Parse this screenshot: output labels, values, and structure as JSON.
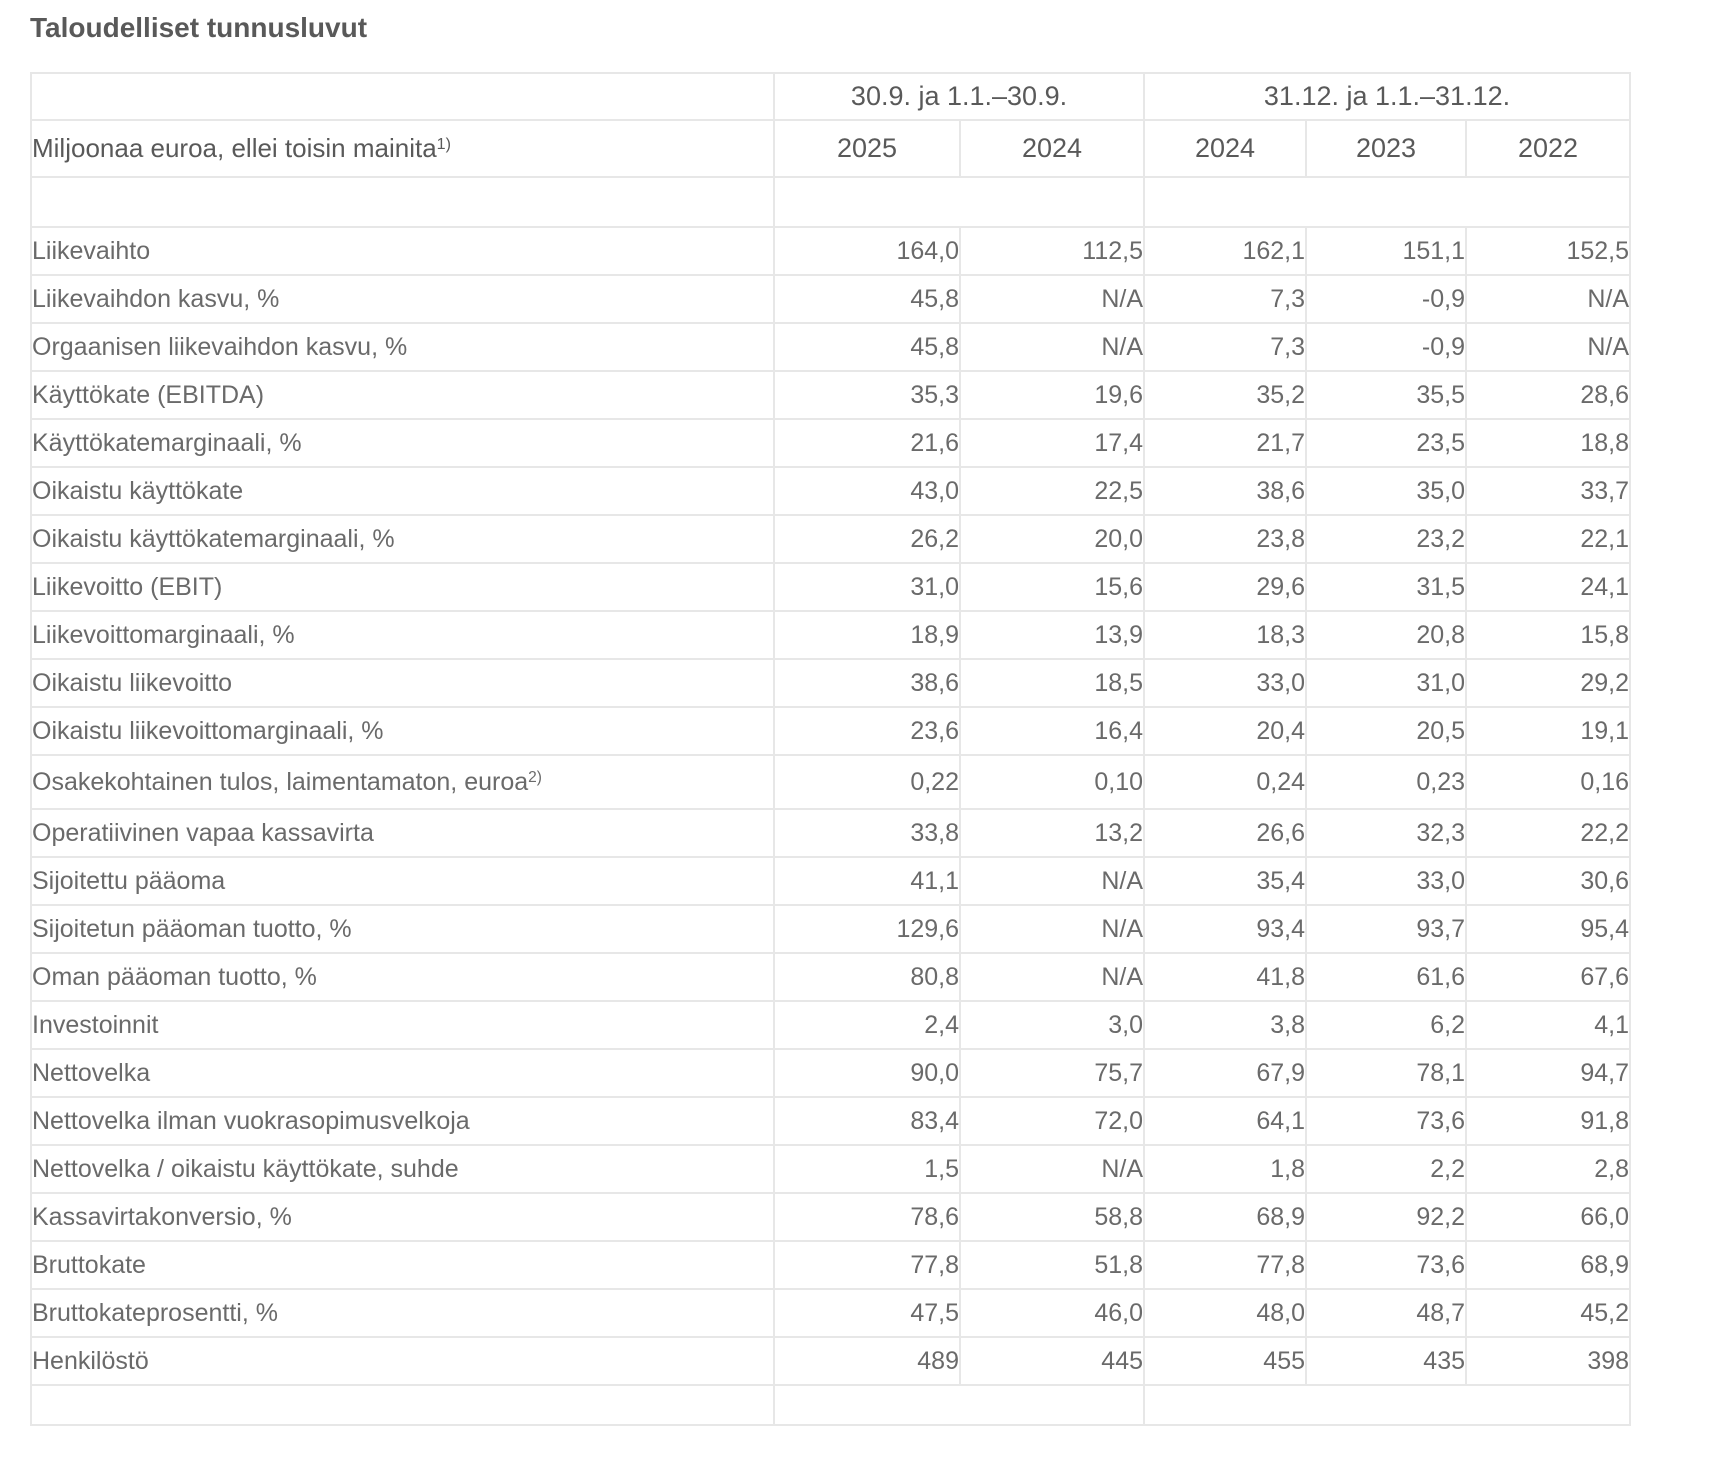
{
  "page": {
    "title": "Taloudelliset tunnusluvut"
  },
  "colors": {
    "header_text": "#595959",
    "body_text": "#6a6a6a",
    "table_border": "#e7e7e7",
    "background": "#ffffff"
  },
  "table": {
    "header": {
      "period_groups": [
        {
          "label": "30.9. ja 1.1.–30.9.",
          "span": 2
        },
        {
          "label": "31.12. ja 1.1.–31.12.",
          "span": 3
        }
      ],
      "unit_label": "Miljoonaa euroa, ellei toisin mainita",
      "unit_label_sup": "1)",
      "years": [
        "2025",
        "2024",
        "2024",
        "2023",
        "2022"
      ]
    },
    "rows": [
      {
        "label": "Liikevaihto",
        "values": [
          "164,0",
          "112,5",
          "162,1",
          "151,1",
          "152,5"
        ]
      },
      {
        "label": "Liikevaihdon kasvu, %",
        "values": [
          "45,8",
          "N/A",
          "7,3",
          "-0,9",
          "N/A"
        ]
      },
      {
        "label": "Orgaanisen liikevaihdon kasvu, %",
        "values": [
          "45,8",
          "N/A",
          "7,3",
          "-0,9",
          "N/A"
        ]
      },
      {
        "label": "Käyttökate (EBITDA)",
        "values": [
          "35,3",
          "19,6",
          "35,2",
          "35,5",
          "28,6"
        ]
      },
      {
        "label": "Käyttökatemarginaali, %",
        "values": [
          "21,6",
          "17,4",
          "21,7",
          "23,5",
          "18,8"
        ]
      },
      {
        "label": "Oikaistu käyttökate",
        "values": [
          "43,0",
          "22,5",
          "38,6",
          "35,0",
          "33,7"
        ]
      },
      {
        "label": "Oikaistu käyttökatemarginaali, %",
        "values": [
          "26,2",
          "20,0",
          "23,8",
          "23,2",
          "22,1"
        ]
      },
      {
        "label": "Liikevoitto (EBIT)",
        "values": [
          "31,0",
          "15,6",
          "29,6",
          "31,5",
          "24,1"
        ]
      },
      {
        "label": "Liikevoittomarginaali, %",
        "values": [
          "18,9",
          "13,9",
          "18,3",
          "20,8",
          "15,8"
        ]
      },
      {
        "label": "Oikaistu liikevoitto",
        "values": [
          "38,6",
          "18,5",
          "33,0",
          "31,0",
          "29,2"
        ]
      },
      {
        "label": "Oikaistu liikevoittomarginaali, %",
        "values": [
          "23,6",
          "16,4",
          "20,4",
          "20,5",
          "19,1"
        ]
      },
      {
        "label": "Osakekohtainen tulos, laimentamaton, euroa",
        "label_sup": "2)",
        "tall": true,
        "values": [
          "0,22",
          "0,10",
          "0,24",
          "0,23",
          "0,16"
        ]
      },
      {
        "label": "Operatiivinen vapaa kassavirta",
        "values": [
          "33,8",
          "13,2",
          "26,6",
          "32,3",
          "22,2"
        ]
      },
      {
        "label": "Sijoitettu pääoma",
        "values": [
          "41,1",
          "N/A",
          "35,4",
          "33,0",
          "30,6"
        ]
      },
      {
        "label": "Sijoitetun pääoman tuotto, %",
        "values": [
          "129,6",
          "N/A",
          "93,4",
          "93,7",
          "95,4"
        ]
      },
      {
        "label": "Oman pääoman tuotto, %",
        "values": [
          "80,8",
          "N/A",
          "41,8",
          "61,6",
          "67,6"
        ]
      },
      {
        "label": "Investoinnit",
        "values": [
          "2,4",
          "3,0",
          "3,8",
          "6,2",
          "4,1"
        ]
      },
      {
        "label": "Nettovelka",
        "values": [
          "90,0",
          "75,7",
          "67,9",
          "78,1",
          "94,7"
        ]
      },
      {
        "label": "Nettovelka ilman vuokrasopimusvelkoja",
        "values": [
          "83,4",
          "72,0",
          "64,1",
          "73,6",
          "91,8"
        ]
      },
      {
        "label": "Nettovelka / oikaistu käyttökate, suhde",
        "values": [
          "1,5",
          "N/A",
          "1,8",
          "2,2",
          "2,8"
        ]
      },
      {
        "label": "Kassavirtakonversio, %",
        "values": [
          "78,6",
          "58,8",
          "68,9",
          "92,2",
          "66,0"
        ]
      },
      {
        "label": "Bruttokate",
        "values": [
          "77,8",
          "51,8",
          "77,8",
          "73,6",
          "68,9"
        ]
      },
      {
        "label": "Bruttokateprosentti, %",
        "values": [
          "47,5",
          "46,0",
          "48,0",
          "48,7",
          "45,2"
        ]
      },
      {
        "label": "Henkilöstö",
        "values": [
          "489",
          "445",
          "455",
          "435",
          "398"
        ]
      }
    ]
  }
}
